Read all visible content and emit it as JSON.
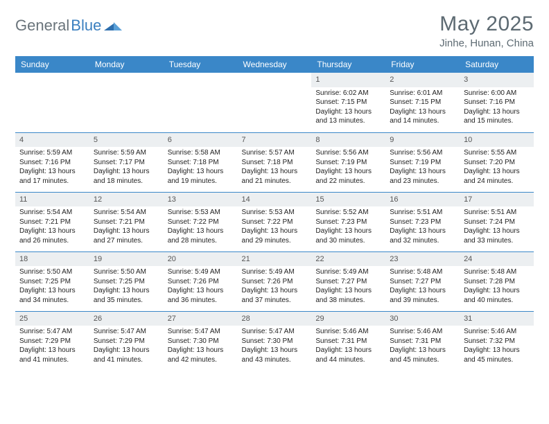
{
  "brand": {
    "part1": "General",
    "part2": "Blue"
  },
  "title": {
    "month": "May 2025",
    "location": "Jinhe, Hunan, China"
  },
  "colors": {
    "header_bg": "#3a87c8",
    "header_fg": "#ffffff",
    "daynum_bg": "#eceff1",
    "rule": "#3a87c8",
    "text": "#222222",
    "muted": "#5d6a72"
  },
  "dayNames": [
    "Sunday",
    "Monday",
    "Tuesday",
    "Wednesday",
    "Thursday",
    "Friday",
    "Saturday"
  ],
  "weeks": [
    [
      null,
      null,
      null,
      null,
      {
        "n": "1",
        "sr": "6:02 AM",
        "ss": "7:15 PM",
        "dl": "13 hours and 13 minutes."
      },
      {
        "n": "2",
        "sr": "6:01 AM",
        "ss": "7:15 PM",
        "dl": "13 hours and 14 minutes."
      },
      {
        "n": "3",
        "sr": "6:00 AM",
        "ss": "7:16 PM",
        "dl": "13 hours and 15 minutes."
      }
    ],
    [
      {
        "n": "4",
        "sr": "5:59 AM",
        "ss": "7:16 PM",
        "dl": "13 hours and 17 minutes."
      },
      {
        "n": "5",
        "sr": "5:59 AM",
        "ss": "7:17 PM",
        "dl": "13 hours and 18 minutes."
      },
      {
        "n": "6",
        "sr": "5:58 AM",
        "ss": "7:18 PM",
        "dl": "13 hours and 19 minutes."
      },
      {
        "n": "7",
        "sr": "5:57 AM",
        "ss": "7:18 PM",
        "dl": "13 hours and 21 minutes."
      },
      {
        "n": "8",
        "sr": "5:56 AM",
        "ss": "7:19 PM",
        "dl": "13 hours and 22 minutes."
      },
      {
        "n": "9",
        "sr": "5:56 AM",
        "ss": "7:19 PM",
        "dl": "13 hours and 23 minutes."
      },
      {
        "n": "10",
        "sr": "5:55 AM",
        "ss": "7:20 PM",
        "dl": "13 hours and 24 minutes."
      }
    ],
    [
      {
        "n": "11",
        "sr": "5:54 AM",
        "ss": "7:21 PM",
        "dl": "13 hours and 26 minutes."
      },
      {
        "n": "12",
        "sr": "5:54 AM",
        "ss": "7:21 PM",
        "dl": "13 hours and 27 minutes."
      },
      {
        "n": "13",
        "sr": "5:53 AM",
        "ss": "7:22 PM",
        "dl": "13 hours and 28 minutes."
      },
      {
        "n": "14",
        "sr": "5:53 AM",
        "ss": "7:22 PM",
        "dl": "13 hours and 29 minutes."
      },
      {
        "n": "15",
        "sr": "5:52 AM",
        "ss": "7:23 PM",
        "dl": "13 hours and 30 minutes."
      },
      {
        "n": "16",
        "sr": "5:51 AM",
        "ss": "7:23 PM",
        "dl": "13 hours and 32 minutes."
      },
      {
        "n": "17",
        "sr": "5:51 AM",
        "ss": "7:24 PM",
        "dl": "13 hours and 33 minutes."
      }
    ],
    [
      {
        "n": "18",
        "sr": "5:50 AM",
        "ss": "7:25 PM",
        "dl": "13 hours and 34 minutes."
      },
      {
        "n": "19",
        "sr": "5:50 AM",
        "ss": "7:25 PM",
        "dl": "13 hours and 35 minutes."
      },
      {
        "n": "20",
        "sr": "5:49 AM",
        "ss": "7:26 PM",
        "dl": "13 hours and 36 minutes."
      },
      {
        "n": "21",
        "sr": "5:49 AM",
        "ss": "7:26 PM",
        "dl": "13 hours and 37 minutes."
      },
      {
        "n": "22",
        "sr": "5:49 AM",
        "ss": "7:27 PM",
        "dl": "13 hours and 38 minutes."
      },
      {
        "n": "23",
        "sr": "5:48 AM",
        "ss": "7:27 PM",
        "dl": "13 hours and 39 minutes."
      },
      {
        "n": "24",
        "sr": "5:48 AM",
        "ss": "7:28 PM",
        "dl": "13 hours and 40 minutes."
      }
    ],
    [
      {
        "n": "25",
        "sr": "5:47 AM",
        "ss": "7:29 PM",
        "dl": "13 hours and 41 minutes."
      },
      {
        "n": "26",
        "sr": "5:47 AM",
        "ss": "7:29 PM",
        "dl": "13 hours and 41 minutes."
      },
      {
        "n": "27",
        "sr": "5:47 AM",
        "ss": "7:30 PM",
        "dl": "13 hours and 42 minutes."
      },
      {
        "n": "28",
        "sr": "5:47 AM",
        "ss": "7:30 PM",
        "dl": "13 hours and 43 minutes."
      },
      {
        "n": "29",
        "sr": "5:46 AM",
        "ss": "7:31 PM",
        "dl": "13 hours and 44 minutes."
      },
      {
        "n": "30",
        "sr": "5:46 AM",
        "ss": "7:31 PM",
        "dl": "13 hours and 45 minutes."
      },
      {
        "n": "31",
        "sr": "5:46 AM",
        "ss": "7:32 PM",
        "dl": "13 hours and 45 minutes."
      }
    ]
  ],
  "labels": {
    "sunrise": "Sunrise: ",
    "sunset": "Sunset: ",
    "daylight": "Daylight: "
  }
}
